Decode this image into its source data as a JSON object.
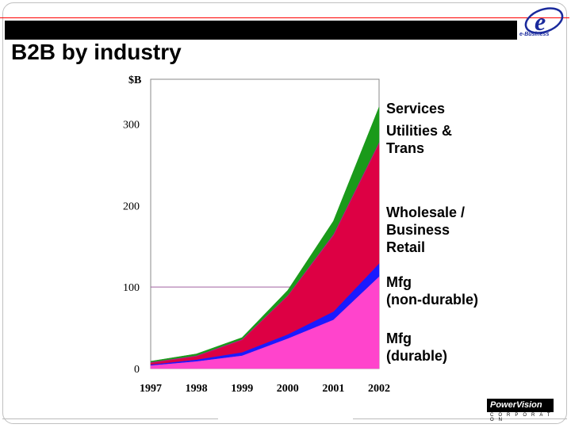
{
  "slide": {
    "title": "B2B by industry",
    "logo_letter": "e",
    "logo_text": "e-Business",
    "footer_brand": "PowerVision",
    "footer_sub": "CORPORAT ON"
  },
  "chart_data": {
    "type": "area",
    "stacked": true,
    "title": "B2B by industry",
    "ylabel": "$B",
    "xlabel": "",
    "x": [
      "1997",
      "1998",
      "1999",
      "2000",
      "2001",
      "2002"
    ],
    "ylim": [
      0,
      355
    ],
    "yticks": [
      0,
      100,
      200,
      300
    ],
    "gridline": 100,
    "series": [
      {
        "name": "Mfg\n(durable)",
        "color": "#ff44cc",
        "values": [
          4,
          9,
          16,
          37,
          60,
          113
        ]
      },
      {
        "name": "Mfg\n(non-durable)",
        "color": "#1a1aff",
        "values": [
          1,
          2,
          4,
          5,
          10,
          16
        ]
      },
      {
        "name": "Wholesale /\nBusiness\nRetail",
        "color": "#dd0044",
        "values": [
          2,
          4,
          15,
          47,
          93,
          147
        ]
      },
      {
        "name": "Utilities &\nTrans",
        "color": "#aa2288",
        "values": [
          1,
          1,
          1,
          1,
          2,
          2
        ]
      },
      {
        "name": "Services",
        "color": "#1a9a1a",
        "values": [
          1,
          2,
          2,
          6,
          16,
          43
        ]
      }
    ],
    "legend_labels": [
      {
        "lines": [
          "Services"
        ]
      },
      {
        "lines": [
          "Utilities &",
          "Trans"
        ]
      },
      {
        "lines": [
          "Wholesale /",
          "Business",
          "Retail"
        ]
      },
      {
        "lines": [
          "Mfg",
          "(non-durable)"
        ]
      },
      {
        "lines": [
          "Mfg",
          "(durable)"
        ]
      }
    ],
    "legend_placement": "right"
  }
}
